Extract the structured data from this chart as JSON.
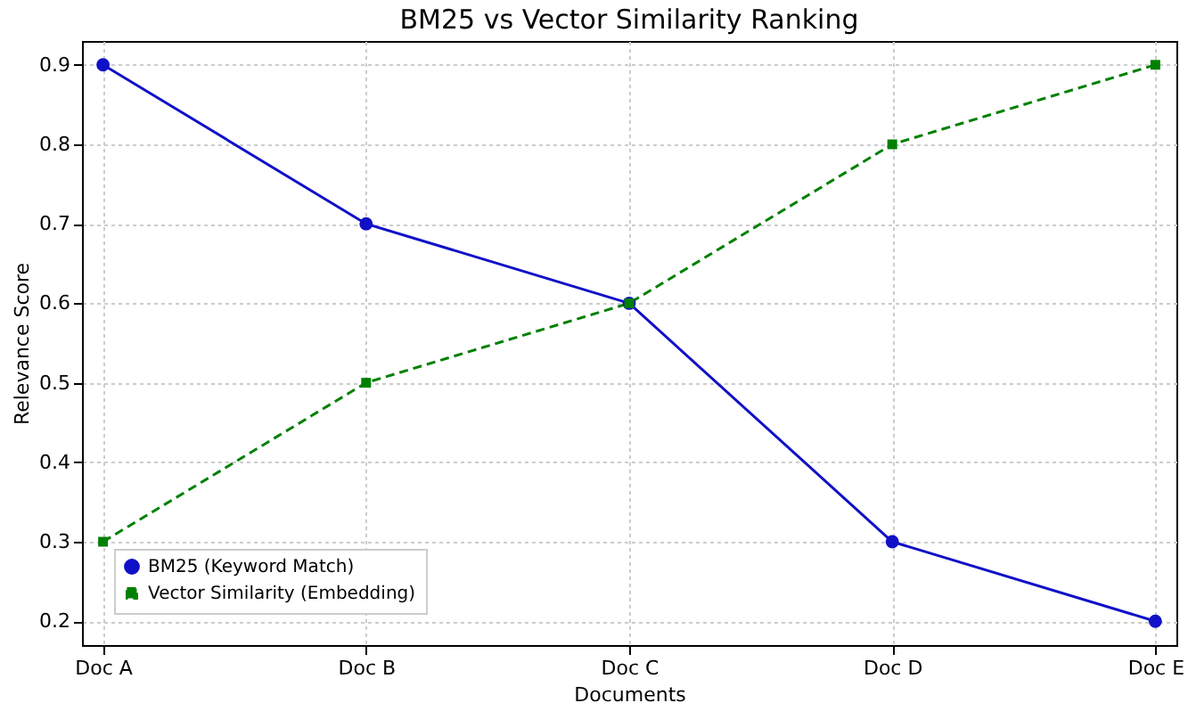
{
  "chart_data": {
    "type": "line",
    "title": "BM25 vs Vector Similarity Ranking",
    "xlabel": "Documents",
    "ylabel": "Relevance Score",
    "categories": [
      "Doc A",
      "Doc B",
      "Doc C",
      "Doc D",
      "Doc E"
    ],
    "series": [
      {
        "name": "BM25 (Keyword Match)",
        "color": "#1010c8",
        "values": [
          0.9,
          0.7,
          0.6,
          0.3,
          0.2
        ],
        "marker": "circle",
        "line_style": "solid"
      },
      {
        "name": "Vector Similarity (Embedding)",
        "color": "#008000",
        "values": [
          0.3,
          0.5,
          0.6,
          0.8,
          0.9
        ],
        "marker": "square",
        "line_style": "dashed"
      }
    ],
    "ylim": [
      0.17,
      0.93
    ],
    "yticks": [
      0.2,
      0.3,
      0.4,
      0.5,
      0.6,
      0.7,
      0.8,
      0.9
    ],
    "grid": true,
    "legend": "bottom left"
  }
}
